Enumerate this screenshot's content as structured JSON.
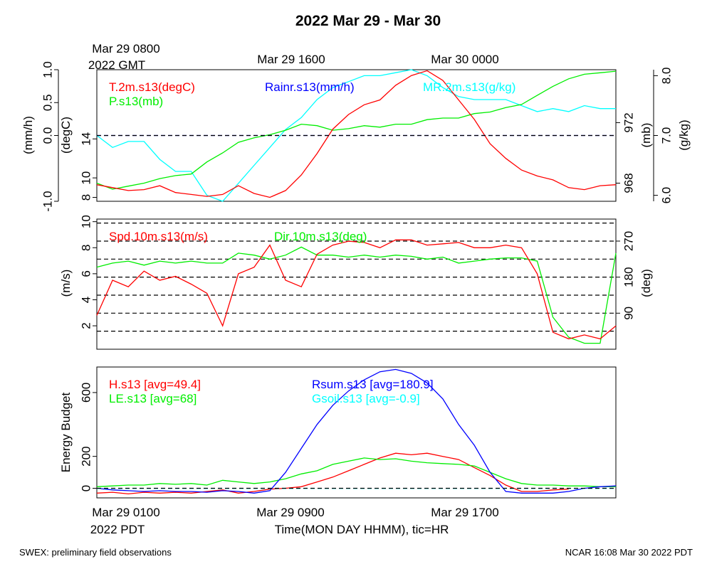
{
  "title": "2022 Mar 29 - Mar 30",
  "gmt_labels": [
    "Mar 29 0800",
    "Mar 29 1600",
    "Mar 30 0000"
  ],
  "gmt_year": "2022 GMT",
  "pdt_labels": [
    "Mar 29 0100",
    "Mar 29 0900",
    "Mar 29 1700"
  ],
  "pdt_year": "2022 PDT",
  "xlabel": "Time(MON DAY HHMM), tic=HR",
  "footer_left": "SWEX: preliminary field observations",
  "footer_right": "NCAR 16:08 Mar 30 2022 PDT",
  "colors": {
    "red": "#ff0000",
    "green": "#00ee00",
    "blue": "#0000ff",
    "cyan": "#00ffff"
  },
  "chart_data": [
    {
      "type": "line",
      "panel": "met",
      "xlim": [
        0,
        33
      ],
      "x_unit": "hours since Mar 29 0100 PDT",
      "legend": [
        "T.2m.s13(degC)",
        "P.s13(mb)",
        "Rainr.s13(mm/h)",
        "MR.2m.s13(g/kg)"
      ],
      "axes": {
        "rain": {
          "label": "(mm/h)",
          "lim": [
            -1.0,
            1.0
          ],
          "ticks": [
            "-1.0",
            "0.0",
            "0.5",
            "1.0"
          ],
          "tick_values": [
            -1.0,
            0.0,
            0.5,
            1.0
          ]
        },
        "temp": {
          "label": "(degC)",
          "lim": [
            7.6,
            21.1
          ],
          "ticks": [
            "8",
            "10",
            "14"
          ],
          "tick_values": [
            8,
            10,
            14
          ]
        },
        "press": {
          "label": "(mb)",
          "lim": [
            966.8,
            975.5
          ],
          "ticks": [
            "968",
            "972"
          ],
          "tick_values": [
            968,
            972
          ]
        },
        "mr": {
          "label": "(g/kg)",
          "lim": [
            5.9,
            8.1
          ],
          "ticks": [
            "6.0",
            "7.0",
            "8.0"
          ],
          "tick_values": [
            6.0,
            7.0,
            8.0
          ]
        }
      },
      "series": [
        {
          "name": "T.2m.s13(degC)",
          "axis": "temp",
          "color": "#ff0000",
          "x": [
            0,
            1,
            2,
            3,
            4,
            5,
            6,
            7,
            8,
            9,
            10,
            11,
            12,
            13,
            14,
            15,
            16,
            17,
            18,
            19,
            20,
            21,
            22,
            23,
            24,
            25,
            26,
            27,
            28,
            29,
            30,
            31,
            32,
            33
          ],
          "y": [
            9.3,
            9.0,
            8.7,
            8.8,
            9.2,
            8.5,
            8.3,
            8.1,
            8.3,
            9.2,
            8.4,
            8.0,
            8.7,
            10.3,
            12.5,
            15.0,
            16.5,
            17.5,
            18.0,
            19.5,
            20.5,
            21.0,
            20.0,
            18.0,
            16.0,
            13.5,
            12.0,
            10.8,
            10.2,
            9.8,
            9.0,
            8.8,
            9.2,
            9.3
          ]
        },
        {
          "name": "P.s13(mb)",
          "axis": "press",
          "color": "#00ee00",
          "x": [
            0,
            1,
            2,
            3,
            4,
            5,
            6,
            7,
            8,
            9,
            10,
            11,
            12,
            13,
            14,
            15,
            16,
            17,
            18,
            19,
            20,
            21,
            22,
            23,
            24,
            25,
            26,
            27,
            28,
            29,
            30,
            31,
            32,
            33
          ],
          "y": [
            968.0,
            967.6,
            967.8,
            968.0,
            968.3,
            968.5,
            968.6,
            969.4,
            970.0,
            970.7,
            971.0,
            971.2,
            971.5,
            971.9,
            971.8,
            971.5,
            971.6,
            971.8,
            971.7,
            971.9,
            971.9,
            972.2,
            972.3,
            972.3,
            972.6,
            972.7,
            973.0,
            973.2,
            973.8,
            974.4,
            974.9,
            975.2,
            975.3,
            975.4
          ]
        },
        {
          "name": "MR.2m.s13(g/kg)",
          "axis": "mr",
          "color": "#00ffff",
          "x": [
            0,
            1,
            2,
            3,
            4,
            5,
            6,
            7,
            8,
            9,
            10,
            11,
            12,
            13,
            14,
            15,
            16,
            17,
            18,
            19,
            20,
            21,
            22,
            23,
            24,
            25,
            26,
            27,
            28,
            29,
            30,
            31,
            32,
            33
          ],
          "y": [
            7.0,
            6.8,
            6.9,
            6.9,
            6.6,
            6.4,
            6.4,
            6.0,
            5.9,
            6.2,
            6.5,
            6.8,
            7.1,
            7.3,
            7.6,
            7.8,
            7.9,
            8.0,
            8.0,
            8.05,
            8.1,
            8.0,
            7.8,
            7.65,
            7.6,
            7.6,
            7.6,
            7.5,
            7.4,
            7.45,
            7.4,
            7.5,
            7.45,
            7.45
          ]
        },
        {
          "name": "Rainr.s13(mm/h)",
          "axis": "rain",
          "color": "#0000ff",
          "x": [
            0,
            33
          ],
          "y": [
            0,
            0
          ]
        }
      ]
    },
    {
      "type": "line",
      "panel": "wind",
      "xlim": [
        0,
        33
      ],
      "legend": [
        "Spd.10m.s13(m/s)",
        "Dir.10m.s13(deg)"
      ],
      "axes": {
        "spd": {
          "label": "(m/s)",
          "lim": [
            0.2,
            10.2
          ],
          "ticks": [
            "2",
            "4",
            "6",
            "8",
            "10"
          ],
          "tick_values": [
            2,
            4,
            6,
            8,
            10
          ]
        },
        "dir": {
          "label": "(deg)",
          "lim": [
            0,
            325
          ],
          "ticks": [
            "90",
            "180",
            "270"
          ],
          "tick_values": [
            90,
            180,
            270
          ]
        }
      },
      "dir_gridlines": [
        45,
        90,
        135,
        180,
        225,
        270,
        315
      ],
      "series": [
        {
          "name": "Spd.10m.s13(m/s)",
          "axis": "spd",
          "color": "#ff0000",
          "x": [
            0,
            1,
            2,
            3,
            4,
            5,
            6,
            7,
            8,
            9,
            10,
            11,
            12,
            13,
            14,
            15,
            16,
            17,
            18,
            19,
            20,
            21,
            22,
            23,
            24,
            25,
            26,
            27,
            28,
            29,
            30,
            31,
            32,
            33
          ],
          "y": [
            2.8,
            5.5,
            5.0,
            6.2,
            5.5,
            5.8,
            5.2,
            4.5,
            2.0,
            6.0,
            6.5,
            8.2,
            5.5,
            5.0,
            7.5,
            8.2,
            8.5,
            8.4,
            8.0,
            8.6,
            8.6,
            8.2,
            8.3,
            8.4,
            8.0,
            8.0,
            8.2,
            8.0,
            6.0,
            1.5,
            1.0,
            1.3,
            1.0,
            2.0
          ]
        },
        {
          "name": "Dir.10m.s13(deg)",
          "axis": "dir",
          "color": "#00ee00",
          "x": [
            0,
            1,
            2,
            3,
            4,
            5,
            6,
            7,
            8,
            9,
            10,
            11,
            12,
            13,
            14,
            15,
            16,
            17,
            18,
            19,
            20,
            21,
            22,
            23,
            24,
            25,
            26,
            27,
            28,
            29,
            30,
            31,
            32,
            33
          ],
          "y": [
            205,
            215,
            220,
            210,
            220,
            215,
            220,
            215,
            215,
            240,
            235,
            225,
            235,
            255,
            235,
            235,
            230,
            235,
            230,
            235,
            232,
            225,
            230,
            215,
            220,
            225,
            228,
            228,
            220,
            80,
            30,
            15,
            15,
            240
          ]
        }
      ]
    },
    {
      "type": "line",
      "panel": "energy",
      "xlim": [
        0,
        33
      ],
      "ylabel": "Energy Budget",
      "ylim": [
        -60,
        760
      ],
      "yticks": [
        "0",
        "200",
        "600"
      ],
      "ytick_values": [
        0,
        200,
        600
      ],
      "legend": [
        "H.s13 [avg=49.4]",
        "LE.s13 [avg=68]",
        "Rsum.s13 [avg=180.9]",
        "Gsoil.s13 [avg=-0.9]"
      ],
      "series": [
        {
          "name": "H.s13 [avg=49.4]",
          "color": "#ff0000",
          "x": [
            0,
            1,
            2,
            3,
            4,
            5,
            6,
            7,
            8,
            9,
            10,
            11,
            12,
            13,
            14,
            15,
            16,
            17,
            18,
            19,
            20,
            21,
            22,
            23,
            24,
            25,
            26,
            27,
            28,
            29,
            30
          ],
          "y": [
            -30,
            -25,
            -35,
            -25,
            -30,
            -25,
            -30,
            -20,
            -10,
            -30,
            -20,
            -5,
            0,
            10,
            40,
            70,
            110,
            150,
            190,
            220,
            210,
            220,
            200,
            180,
            130,
            80,
            20,
            -20,
            -20,
            -10,
            -5
          ]
        },
        {
          "name": "LE.s13 [avg=68]",
          "color": "#00ee00",
          "x": [
            0,
            1,
            2,
            3,
            4,
            5,
            6,
            7,
            8,
            9,
            10,
            11,
            12,
            13,
            14,
            15,
            16,
            17,
            18,
            19,
            20,
            21,
            22,
            23,
            24,
            25,
            26,
            27,
            28,
            29,
            30,
            31,
            32,
            33
          ],
          "y": [
            10,
            15,
            20,
            20,
            30,
            25,
            30,
            20,
            50,
            40,
            30,
            40,
            60,
            90,
            110,
            150,
            170,
            190,
            180,
            185,
            170,
            160,
            155,
            150,
            140,
            100,
            60,
            30,
            20,
            20,
            15,
            15,
            10,
            10
          ]
        },
        {
          "name": "Rsum.s13 [avg=180.9]",
          "color": "#0000ff",
          "x": [
            0,
            1,
            2,
            3,
            4,
            5,
            6,
            7,
            8,
            9,
            10,
            11,
            12,
            13,
            14,
            15,
            16,
            17,
            18,
            19,
            20,
            21,
            22,
            23,
            24,
            25,
            26,
            27,
            28,
            29,
            30,
            31,
            32,
            33
          ],
          "y": [
            0,
            -10,
            -15,
            -20,
            -15,
            -20,
            -20,
            -25,
            -15,
            -20,
            -30,
            -15,
            100,
            250,
            400,
            520,
            610,
            680,
            730,
            745,
            720,
            660,
            560,
            400,
            270,
            100,
            -20,
            -30,
            -30,
            -30,
            -20,
            0,
            10,
            15
          ]
        },
        {
          "name": "Gsoil.s13 [avg=-0.9]",
          "color": "#00ffff",
          "x": [
            0,
            33
          ],
          "y": [
            -1,
            -1
          ]
        }
      ]
    }
  ]
}
